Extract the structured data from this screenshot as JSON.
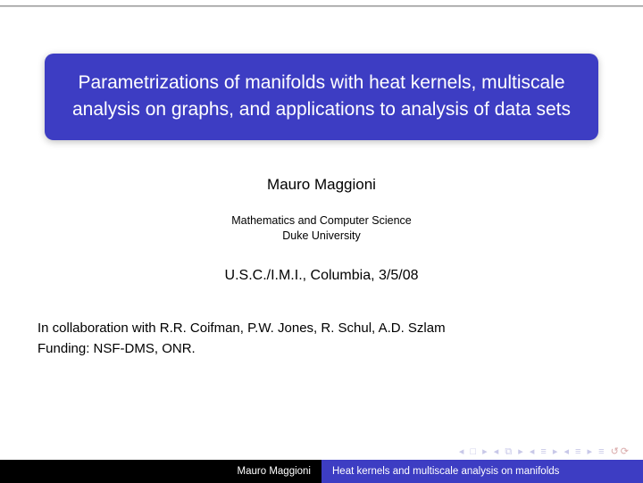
{
  "title": "Parametrizations of manifolds with heat kernels, multiscale analysis on graphs, and applications to analysis of data sets",
  "author": "Mauro Maggioni",
  "institute_line1": "Mathematics and Computer Science",
  "institute_line2": "Duke University",
  "venue": "U.S.C./I.M.I., Columbia, 3/5/08",
  "collab_line1": "In collaboration with R.R. Coifman, P.W. Jones, R. Schul, A.D. Szlam",
  "collab_line2": "Funding: NSF-DMS, ONR.",
  "footer": {
    "author": "Mauro Maggioni",
    "shorttitle": "Heat kernels and multiscale analysis on manifolds"
  },
  "nav_symbols": "◂ □ ▸   ◂ ⧉ ▸   ◂ ≡ ▸   ◂ ≡ ▸     ≡   ",
  "nav_undo": "↺⟳",
  "colors": {
    "title_bg": "#3d3dc3",
    "title_fg": "#ffffff",
    "footer_left_bg": "#000000",
    "footer_right_bg": "#3d3dc3",
    "nav_color": "#c8c8e8",
    "nav_undo_color": "#d9a9a9"
  }
}
